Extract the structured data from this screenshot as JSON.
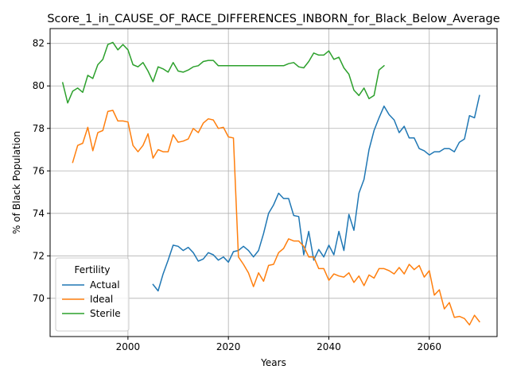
{
  "chart_data": {
    "type": "line",
    "title": "Score_1_in_CAUSE_OF_RACE_DIFFERENCES_INBORN_for_Black_Below_Average",
    "xlabel": "Years",
    "ylabel": "% of Black Population",
    "xlim": [
      2085.5,
      2073.5
    ],
    "ylim": [
      68.2,
      82.7
    ],
    "xticks": [
      2000,
      2020,
      2040,
      2060
    ],
    "yticks": [
      70,
      72,
      74,
      76,
      78,
      80,
      82
    ],
    "grid": true,
    "legend": {
      "title": "Fertility",
      "position": "lower-left"
    },
    "series": [
      {
        "name": "Actual",
        "color": "#1f77b4",
        "x": [
          2005,
          2006,
          2007,
          2008,
          2009,
          2010,
          2011,
          2012,
          2013,
          2014,
          2015,
          2016,
          2017,
          2018,
          2019,
          2020,
          2021,
          2022,
          2023,
          2024,
          2025,
          2026,
          2027,
          2028,
          2029,
          2030,
          2031,
          2032,
          2033,
          2034,
          2035,
          2036,
          2037,
          2038,
          2039,
          2040,
          2041,
          2042,
          2043,
          2044,
          2045,
          2046,
          2047,
          2048,
          2049,
          2050,
          2051,
          2052,
          2053,
          2054,
          2055,
          2056,
          2057,
          2058,
          2059,
          2060,
          2061,
          2062,
          2063,
          2064,
          2065,
          2066,
          2067,
          2068,
          2069,
          2070
        ],
        "y": [
          70.65,
          70.35,
          71.15,
          71.8,
          72.5,
          72.45,
          72.25,
          72.4,
          72.15,
          71.75,
          71.85,
          72.15,
          72.05,
          71.8,
          71.95,
          71.7,
          72.2,
          72.25,
          72.45,
          72.25,
          71.95,
          72.25,
          73.05,
          74.0,
          74.4,
          74.95,
          74.7,
          74.7,
          73.9,
          73.85,
          72.05,
          73.15,
          71.8,
          72.3,
          71.95,
          72.5,
          72.05,
          73.15,
          72.25,
          73.95,
          73.2,
          74.95,
          75.6,
          77.0,
          77.9,
          78.5,
          79.05,
          78.65,
          78.4,
          77.8,
          78.1,
          77.55,
          77.55,
          77.05,
          76.95,
          76.75,
          76.9,
          76.9,
          77.05,
          77.05,
          76.9,
          77.35,
          77.5,
          78.6,
          78.5,
          79.55
        ]
      },
      {
        "name": "Ideal",
        "color": "#ff7f0e",
        "x": [
          1989,
          1990,
          1991,
          1992,
          1993,
          1994,
          1995,
          1996,
          1997,
          1998,
          1999,
          2000,
          2001,
          2002,
          2003,
          2004,
          2005,
          2006,
          2007,
          2008,
          2009,
          2010,
          2011,
          2012,
          2013,
          2014,
          2015,
          2016,
          2017,
          2018,
          2019,
          2020,
          2021,
          2022,
          2023,
          2024,
          2025,
          2026,
          2027,
          2028,
          2029,
          2030,
          2031,
          2032,
          2033,
          2034,
          2035,
          2036,
          2037,
          2038,
          2039,
          2040,
          2041,
          2042,
          2043,
          2044,
          2045,
          2046,
          2047,
          2048,
          2049,
          2050,
          2051,
          2052,
          2053,
          2054,
          2055,
          2056,
          2057,
          2058,
          2059,
          2060,
          2061,
          2062,
          2063,
          2064,
          2065,
          2066,
          2067,
          2068,
          2069,
          2070
        ],
        "y": [
          76.4,
          77.2,
          77.3,
          78.05,
          76.95,
          77.8,
          77.9,
          78.8,
          78.85,
          78.35,
          78.35,
          78.3,
          77.2,
          76.9,
          77.2,
          77.75,
          76.6,
          77.0,
          76.9,
          76.9,
          77.7,
          77.35,
          77.4,
          77.5,
          78.0,
          77.8,
          78.25,
          78.45,
          78.4,
          78.0,
          78.05,
          77.6,
          77.55,
          71.95,
          71.6,
          71.2,
          70.55,
          71.2,
          70.8,
          71.55,
          71.6,
          72.15,
          72.35,
          72.8,
          72.7,
          72.7,
          72.45,
          71.95,
          71.95,
          71.4,
          71.4,
          70.85,
          71.15,
          71.05,
          71.0,
          71.2,
          70.75,
          71.05,
          70.6,
          71.1,
          70.95,
          71.4,
          71.4,
          71.3,
          71.15,
          71.45,
          71.15,
          71.6,
          71.35,
          71.55,
          71.0,
          71.3,
          70.15,
          70.4,
          69.5,
          69.8,
          69.1,
          69.15,
          69.05,
          68.75,
          69.2,
          68.9
        ]
      },
      {
        "name": "Sterile",
        "color": "#2ca02c",
        "x": [
          1987,
          1988,
          1989,
          1990,
          1991,
          1992,
          1993,
          1994,
          1995,
          1996,
          1997,
          1998,
          1999,
          2000,
          2001,
          2002,
          2003,
          2004,
          2005,
          2006,
          2007,
          2008,
          2009,
          2010,
          2011,
          2012,
          2013,
          2014,
          2015,
          2016,
          2017,
          2018,
          2019,
          2020,
          2021,
          2022,
          2023,
          2024,
          2025,
          2026,
          2027,
          2028,
          2029,
          2030,
          2031,
          2032,
          2033,
          2034,
          2035,
          2036,
          2037,
          2038,
          2039,
          2040,
          2041,
          2042,
          2043,
          2044,
          2045,
          2046,
          2047,
          2048,
          2049,
          2050,
          2051
        ],
        "y": [
          80.15,
          79.2,
          79.75,
          79.9,
          79.7,
          80.5,
          80.35,
          81.0,
          81.25,
          81.95,
          82.05,
          81.7,
          81.95,
          81.7,
          81.0,
          80.9,
          81.1,
          80.7,
          80.2,
          80.9,
          80.8,
          80.65,
          81.1,
          80.7,
          80.65,
          80.75,
          80.9,
          80.95,
          81.15,
          81.2,
          81.2,
          80.95,
          80.95,
          80.95,
          80.95,
          80.95,
          80.95,
          80.95,
          80.95,
          80.95,
          80.95,
          80.95,
          80.95,
          80.95,
          80.95,
          81.05,
          81.1,
          80.9,
          80.85,
          81.15,
          81.55,
          81.45,
          81.45,
          81.65,
          81.25,
          81.35,
          80.85,
          80.55,
          79.8,
          79.55,
          79.9,
          79.4,
          79.55,
          80.75,
          80.95
        ]
      }
    ]
  }
}
